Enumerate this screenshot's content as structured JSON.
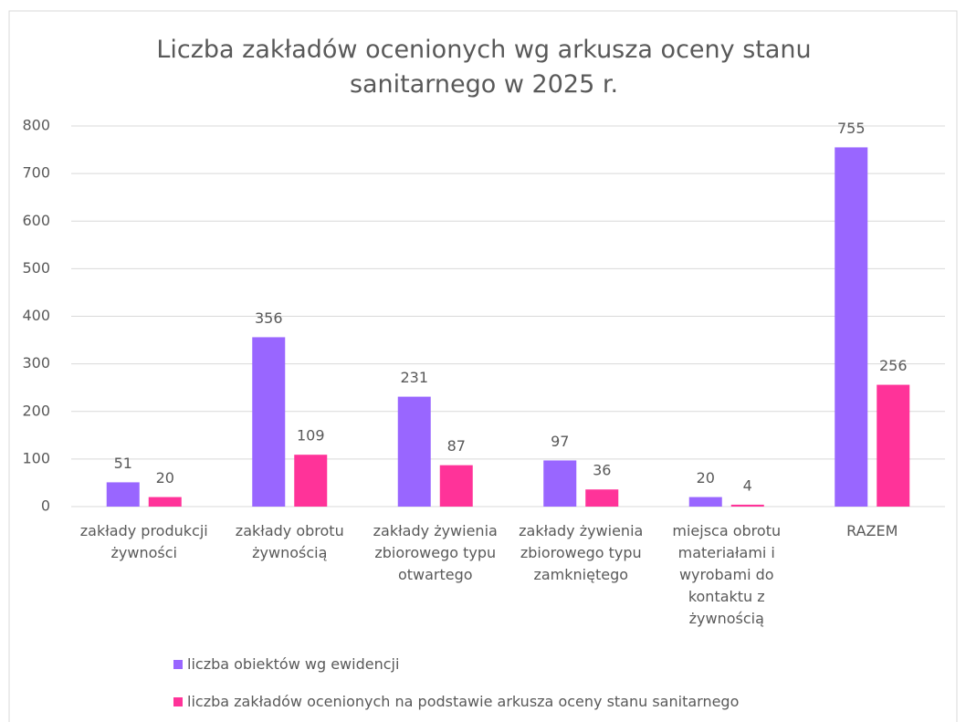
{
  "chart_data": {
    "type": "bar",
    "title": "Liczba zakładów ocenionych wg arkusza oceny stanu sanitarnego w 2025 r.",
    "categories": [
      "zakłady produkcji żywności",
      "zakłady obrotu żywnością",
      "zakłady żywienia zbiorowego typu otwartego",
      "zakłady żywienia zbiorowego typu zamkniętego",
      "miejsca obrotu materiałami i wyrobami do kontaktu z żywnością",
      "RAZEM"
    ],
    "series": [
      {
        "name": "liczba obiektów wg ewidencji",
        "color": "#9966ff",
        "values": [
          51,
          356,
          231,
          97,
          20,
          755
        ]
      },
      {
        "name": "liczba zakładów ocenionych na podstawie arkusza oceny stanu sanitarnego",
        "color": "#ff3399",
        "values": [
          20,
          109,
          87,
          36,
          4,
          256
        ]
      }
    ],
    "ylim": [
      0,
      800
    ],
    "yticks": [
      0,
      100,
      200,
      300,
      400,
      500,
      600,
      700,
      800
    ],
    "grid": true,
    "legend": "bottom"
  }
}
